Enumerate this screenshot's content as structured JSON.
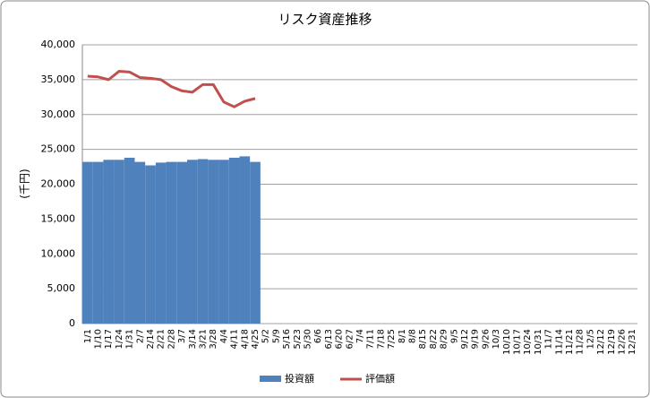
{
  "chart_data": {
    "type": "bar-line",
    "title": "リスク資産推移",
    "y_label": "(千円)",
    "categories": [
      "1/1",
      "1/10",
      "1/17",
      "1/24",
      "1/31",
      "2/7",
      "2/14",
      "2/21",
      "2/28",
      "3/7",
      "3/14",
      "3/21",
      "3/28",
      "4/4",
      "4/11",
      "4/18",
      "4/25",
      "5/2",
      "5/9",
      "5/16",
      "5/23",
      "5/30",
      "6/6",
      "6/13",
      "6/20",
      "6/27",
      "7/4",
      "7/11",
      "7/18",
      "7/25",
      "8/1",
      "8/8",
      "8/15",
      "8/22",
      "8/29",
      "9/5",
      "9/12",
      "9/19",
      "9/26",
      "10/3",
      "10/10",
      "10/17",
      "10/24",
      "10/31",
      "11/7",
      "11/14",
      "11/21",
      "11/28",
      "12/5",
      "12/12",
      "12/19",
      "12/26",
      "12/31"
    ],
    "series": [
      {
        "name": "投資額",
        "type": "bar",
        "color": "#4f81bd",
        "values": [
          23200,
          23200,
          23500,
          23500,
          23800,
          23200,
          22700,
          23100,
          23200,
          23200,
          23500,
          23600,
          23500,
          23500,
          23800,
          24000,
          23200,
          null,
          null,
          null,
          null,
          null,
          null,
          null,
          null,
          null,
          null,
          null,
          null,
          null,
          null,
          null,
          null,
          null,
          null,
          null,
          null,
          null,
          null,
          null,
          null,
          null,
          null,
          null,
          null,
          null,
          null,
          null,
          null,
          null,
          null,
          null,
          null
        ]
      },
      {
        "name": "評価額",
        "type": "line",
        "color": "#c0504d",
        "values": [
          35500,
          35400,
          35000,
          36200,
          36100,
          35300,
          35200,
          35000,
          34000,
          33400,
          33200,
          34300,
          34300,
          31800,
          31100,
          31900,
          32300,
          null,
          null,
          null,
          null,
          null,
          null,
          null,
          null,
          null,
          null,
          null,
          null,
          null,
          null,
          null,
          null,
          null,
          null,
          null,
          null,
          null,
          null,
          null,
          null,
          null,
          null,
          null,
          null,
          null,
          null,
          null,
          null,
          null,
          null,
          null,
          null
        ]
      }
    ],
    "ylim": [
      0,
      40000
    ],
    "yticks": [
      0,
      {
        "value": 5000,
        "label": "5,000"
      },
      {
        "value": 10000,
        "label": "10,000"
      },
      {
        "value": 15000,
        "label": "15,000"
      },
      {
        "value": 20000,
        "label": "20,000"
      },
      {
        "value": 25000,
        "label": "25,000"
      },
      {
        "value": 30000,
        "label": "30,000"
      },
      {
        "value": 35000,
        "label": "35,000"
      },
      {
        "value": 40000,
        "label": "40,000"
      }
    ],
    "grid": true,
    "legend": "bottom"
  }
}
